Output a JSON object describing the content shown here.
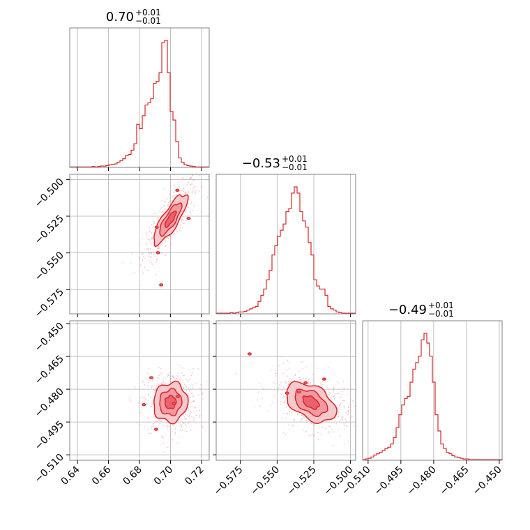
{
  "colors": {
    "accent": "#d62728",
    "fill_inner": "#e8636e",
    "fill_outer": "#f7c9cd",
    "grid": "#b0b0b0",
    "frame": "#808080"
  },
  "chart_data": {
    "type": "corner",
    "parameters": [
      {
        "title": "0.70",
        "upper": "+0.01",
        "lower": "−0.01",
        "range": [
          0.635,
          0.725
        ],
        "ticks": [
          0.64,
          0.66,
          0.68,
          0.7,
          0.72
        ],
        "tick_labels": [
          "0.64",
          "0.66",
          "0.68",
          "0.70",
          "0.72"
        ],
        "median": 0.7,
        "sigma": 0.0055
      },
      {
        "title": "−0.53",
        "upper": "+0.01",
        "lower": "−0.01",
        "range": [
          -0.5915,
          -0.4965
        ],
        "ticks": [
          -0.575,
          -0.55,
          -0.525,
          -0.5
        ],
        "tick_labels": [
          "−0.575",
          "−0.550",
          "−0.525",
          "−0.500"
        ],
        "median": -0.527,
        "sigma": 0.0085
      },
      {
        "title": "−0.49",
        "upper": "+0.01",
        "lower": "−0.01",
        "range": [
          -0.5125,
          -0.4487
        ],
        "ticks": [
          -0.51,
          -0.495,
          -0.48,
          -0.465,
          -0.45
        ],
        "tick_labels": [
          "−0.510",
          "−0.495",
          "−0.480",
          "−0.465",
          "−0.450"
        ],
        "median": -0.486,
        "sigma": 0.0045
      }
    ],
    "histograms": [
      {
        "param": 0,
        "bin_start": 0.635,
        "bin_width": 0.0018,
        "counts": [
          1,
          1,
          1,
          1,
          1,
          1,
          1,
          1,
          2,
          1,
          2,
          3,
          3,
          4,
          6,
          7,
          8,
          12,
          16,
          20,
          28,
          30,
          40,
          55,
          100,
          90,
          120,
          145,
          150,
          160,
          195,
          200,
          220,
          290,
          295,
          220,
          130,
          110,
          60,
          22,
          12,
          6,
          4,
          3,
          2,
          1,
          1,
          1,
          1,
          1
        ]
      },
      {
        "param": 1,
        "bin_start": -0.5915,
        "bin_width": 0.0019,
        "counts": [
          1,
          1,
          1,
          1,
          1,
          2,
          1,
          2,
          3,
          3,
          4,
          6,
          8,
          10,
          12,
          20,
          30,
          40,
          55,
          70,
          95,
          110,
          125,
          135,
          145,
          165,
          170,
          195,
          205,
          195,
          165,
          150,
          140,
          115,
          95,
          55,
          45,
          40,
          40,
          30,
          12,
          8,
          6,
          3,
          2,
          1,
          1,
          1,
          1,
          1
        ]
      },
      {
        "param": 2,
        "bin_start": -0.5125,
        "bin_width": 0.001276,
        "counts": [
          1,
          2,
          3,
          5,
          8,
          10,
          12,
          15,
          18,
          20,
          25,
          35,
          50,
          70,
          85,
          95,
          98,
          120,
          140,
          150,
          160,
          185,
          195,
          180,
          160,
          120,
          70,
          45,
          25,
          18,
          12,
          10,
          7,
          5,
          4,
          3,
          2,
          2,
          1,
          1,
          1,
          1,
          1,
          1,
          1,
          1,
          1,
          1,
          1,
          1
        ]
      }
    ],
    "pairs": [
      {
        "x_param": 0,
        "y_param": 1,
        "correlation": 0.82
      },
      {
        "x_param": 0,
        "y_param": 2,
        "correlation": 0.05
      },
      {
        "x_param": 1,
        "y_param": 2,
        "correlation": -0.45
      }
    ],
    "grid": true
  }
}
